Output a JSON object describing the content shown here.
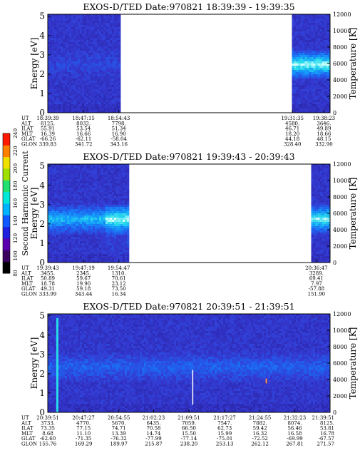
{
  "chart_data": [
    {
      "type": "heatmap",
      "title": "EXOS-D/TED   Date:970821  18:39:39 - 19:39:35",
      "ylabel": "Energy [eV]",
      "y2label": "Temperature [K]",
      "yticks": [
        "0",
        "1",
        "2",
        "3",
        "4",
        "5"
      ],
      "y2ticks": [
        "0",
        "2000",
        "4000",
        "6000",
        "8000",
        "10000",
        "12000"
      ],
      "ylim": [
        0,
        5.1
      ],
      "y2lim": [
        0,
        12000
      ],
      "time_range_min": [
        0,
        60
      ],
      "data_segments_min": [
        [
          0,
          15.5
        ],
        [
          51.9,
          60
        ]
      ],
      "band_center_eV": 2.55,
      "band_intensity_min": [
        0,
        8.7,
        0.9
      ],
      "band_segment_from_min": 51.9,
      "row_labels": [
        "UT",
        "ALT",
        "ILAT",
        "MLT",
        "GLAT",
        "GLON"
      ],
      "columns": [
        {
          "t": 0,
          "values": [
            "18:39:39",
            "8125.",
            "55.91",
            "16.39",
            "-66.26",
            "339.83"
          ]
        },
        {
          "t": 7.6,
          "values": [
            "18:47:15",
            "8032.",
            "53.54",
            "16.66",
            "-62.11",
            "341.72"
          ]
        },
        {
          "t": 15.1,
          "values": [
            "18:54:43",
            "7798.",
            "51.34",
            "16.90",
            "-58.04",
            "343.16"
          ]
        },
        {
          "t": 52.0,
          "values": [
            "19:31:35",
            "4580.",
            "46.71",
            "18.20",
            "44.18",
            "328.40"
          ]
        },
        {
          "t": 58.7,
          "values": [
            "19:38:23",
            "3646.",
            "49.89",
            "18.66",
            "48.15",
            "332.90"
          ]
        }
      ]
    },
    {
      "type": "heatmap",
      "title": "EXOS-D/TED   Date:970821  19:39:43 - 20:39:43",
      "ylabel": "Energy [eV]",
      "y2label": "Temperature [K]",
      "yticks": [
        "0",
        "1",
        "2",
        "3",
        "4",
        "5"
      ],
      "y2ticks": [
        "0",
        "2000",
        "4000",
        "6000",
        "8000",
        "10000",
        "12000"
      ],
      "ylim": [
        0,
        5.1
      ],
      "y2lim": [
        0,
        12000
      ],
      "time_range_min": [
        0,
        60
      ],
      "data_segments_min": [
        [
          0,
          17.3
        ],
        [
          56.0,
          60
        ]
      ],
      "band_center_eV": 2.3,
      "band_intensity_min": [
        0,
        17.3,
        0.7
      ],
      "band_segment_from_min": 56.0,
      "row_labels": [
        "UT",
        "ALT",
        "ILAT",
        "MLT",
        "GLAT",
        "GLON"
      ],
      "columns": [
        {
          "t": 0,
          "values": [
            "19:39:43",
            "3455.",
            "50.89",
            "18.78",
            "49.31",
            "333.99"
          ]
        },
        {
          "t": 7.6,
          "values": [
            "19:47:19",
            "2345.",
            "59.67",
            "19.90",
            "59.18",
            "343.44"
          ]
        },
        {
          "t": 15.1,
          "values": [
            "19:54:47",
            "1310.",
            "70.61",
            "23.12",
            "73.50",
            "16.34"
          ]
        },
        {
          "t": 57.1,
          "values": [
            "20:36:47",
            "3289.",
            "69.41",
            "7.97",
            "-57.88",
            "151.90"
          ]
        }
      ]
    },
    {
      "type": "heatmap",
      "title": "EXOS-D/TED   Date:970821  20:39:51 - 21:39:51",
      "ylabel": "Energy [eV]",
      "y2label": "Temperature [K]",
      "yticks": [
        "0",
        "1",
        "2",
        "3",
        "4",
        "5"
      ],
      "y2ticks": [
        "0",
        "2000",
        "4000",
        "6000",
        "8000",
        "10000",
        "12000"
      ],
      "ylim": [
        0,
        5.1
      ],
      "y2lim": [
        0,
        12000
      ],
      "time_range_min": [
        0,
        60
      ],
      "data_segments_min": [
        [
          0,
          60
        ]
      ],
      "band_center_eV": 2.4,
      "band_intensity_min": [
        0,
        60,
        0.3
      ],
      "band_segment_from_min": 60,
      "row_labels": [
        "UT",
        "ALT",
        "ILAT",
        "MLT",
        "GLAT",
        "GLON"
      ],
      "columns": [
        {
          "t": 0,
          "values": [
            "20:39:51",
            "3733.",
            "73.35",
            "8.68",
            "-62.60",
            "155.76"
          ]
        },
        {
          "t": 7.6,
          "values": [
            "20:47:27",
            "4770.",
            "77.15",
            "11.10",
            "-71.35",
            "169.29"
          ]
        },
        {
          "t": 15.1,
          "values": [
            "20:54:55",
            "5670.",
            "74.71",
            "13.39",
            "-76.32",
            "189.97"
          ]
        },
        {
          "t": 22.5,
          "values": [
            "21:02:23",
            "6435.",
            "70.58",
            "14.74",
            "-77.99",
            "215.87"
          ]
        },
        {
          "t": 30.0,
          "values": [
            "21:09:51",
            "7059.",
            "66.50",
            "15.50",
            "-77.14",
            "238.20"
          ]
        },
        {
          "t": 37.6,
          "values": [
            "21:17:27",
            "7547.",
            "62.73",
            "15.99",
            "-75.01",
            "253.13"
          ]
        },
        {
          "t": 45.1,
          "values": [
            "21:24:55",
            "7882.",
            "59.42",
            "16.32",
            "-72.52",
            "262.12"
          ]
        },
        {
          "t": 52.5,
          "values": [
            "21:32:23",
            "8074.",
            "56.46",
            "16.58",
            "-69.99",
            "267.81"
          ]
        },
        {
          "t": 60.0,
          "values": [
            "21:39:51",
            "8125.",
            "53.81",
            "16.78",
            "-67.57",
            "271.57"
          ]
        }
      ]
    }
  ],
  "colorbar": {
    "label": "Second Harmonic Current",
    "ticks": [
      "80",
      "100",
      "120",
      "140",
      "160",
      "180",
      "200",
      "220",
      "240"
    ],
    "range": [
      80,
      240
    ],
    "colors": [
      "#000000",
      "#3a0060",
      "#5a00b0",
      "#2020e0",
      "#1058ff",
      "#00b4ff",
      "#00e8d8",
      "#20e070",
      "#a0e000",
      "#f0e000",
      "#ff8000",
      "#ff1800"
    ]
  }
}
